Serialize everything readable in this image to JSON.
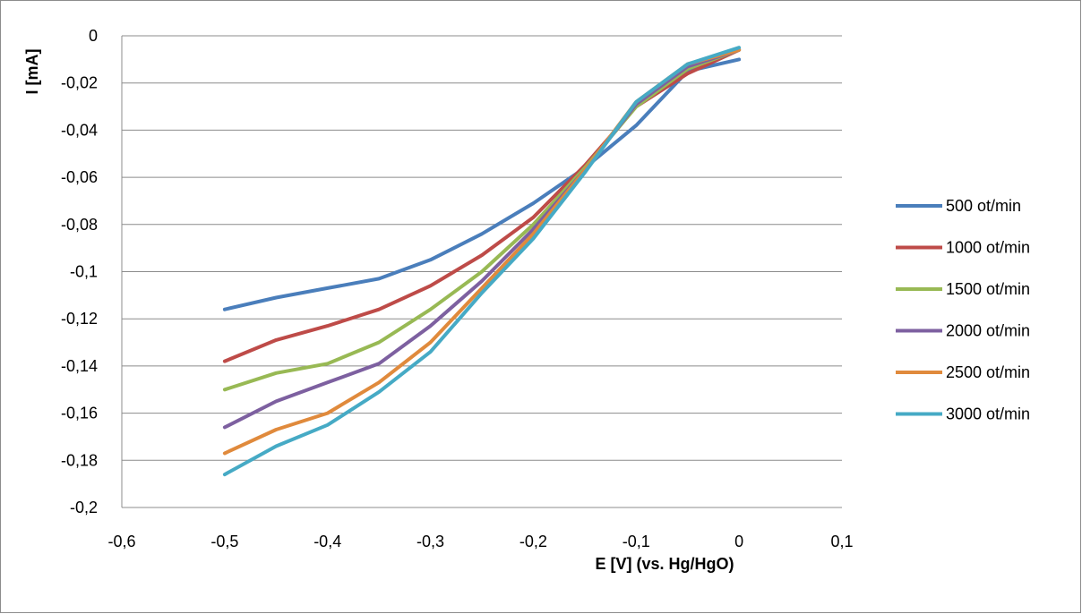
{
  "chart_data": {
    "type": "line",
    "title": "",
    "xlabel": "E [V] (vs. Hg/HgO)",
    "ylabel": "I [mA]",
    "xlim": [
      -0.6,
      0.1
    ],
    "ylim": [
      -0.2,
      0
    ],
    "xticks": [
      "-0,6",
      "-0,5",
      "-0,4",
      "-0,3",
      "-0,2",
      "-0,1",
      "0",
      "0,1"
    ],
    "yticks": [
      "0",
      "-0,02",
      "-0,04",
      "-0,06",
      "-0,08",
      "-0,1",
      "-0,12",
      "-0,14",
      "-0,16",
      "-0,18",
      "-0,2"
    ],
    "grid": "horizontal",
    "legend_position": "right",
    "series": [
      {
        "name": "500 ot/min",
        "color": "#4a7ebb",
        "x": [
          -0.5,
          -0.45,
          -0.4,
          -0.35,
          -0.3,
          -0.25,
          -0.2,
          -0.15,
          -0.1,
          -0.05,
          0
        ],
        "y": [
          -0.116,
          -0.111,
          -0.107,
          -0.103,
          -0.095,
          -0.084,
          -0.071,
          -0.056,
          -0.038,
          -0.015,
          -0.01
        ]
      },
      {
        "name": "1000 ot/min",
        "color": "#be4b48",
        "x": [
          -0.5,
          -0.45,
          -0.4,
          -0.35,
          -0.3,
          -0.25,
          -0.2,
          -0.15,
          -0.1,
          -0.05,
          0
        ],
        "y": [
          -0.138,
          -0.129,
          -0.123,
          -0.116,
          -0.106,
          -0.093,
          -0.077,
          -0.055,
          -0.03,
          -0.016,
          -0.006
        ]
      },
      {
        "name": "1500 ot/min",
        "color": "#98b954",
        "x": [
          -0.5,
          -0.45,
          -0.4,
          -0.35,
          -0.3,
          -0.25,
          -0.2,
          -0.15,
          -0.1,
          -0.05,
          0
        ],
        "y": [
          -0.15,
          -0.143,
          -0.139,
          -0.13,
          -0.116,
          -0.1,
          -0.08,
          -0.056,
          -0.03,
          -0.014,
          -0.006
        ]
      },
      {
        "name": "2000 ot/min",
        "color": "#7d60a0",
        "x": [
          -0.5,
          -0.45,
          -0.4,
          -0.35,
          -0.3,
          -0.25,
          -0.2,
          -0.15,
          -0.1,
          -0.05,
          0
        ],
        "y": [
          -0.166,
          -0.155,
          -0.147,
          -0.139,
          -0.123,
          -0.104,
          -0.082,
          -0.057,
          -0.029,
          -0.013,
          -0.006
        ]
      },
      {
        "name": "2500 ot/min",
        "color": "#e08a3c",
        "x": [
          -0.5,
          -0.45,
          -0.4,
          -0.35,
          -0.3,
          -0.25,
          -0.2,
          -0.15,
          -0.1,
          -0.05,
          0
        ],
        "y": [
          -0.177,
          -0.167,
          -0.16,
          -0.147,
          -0.13,
          -0.107,
          -0.084,
          -0.057,
          -0.028,
          -0.012,
          -0.006
        ]
      },
      {
        "name": "3000 ot/min",
        "color": "#46aac5",
        "x": [
          -0.5,
          -0.45,
          -0.4,
          -0.35,
          -0.3,
          -0.25,
          -0.2,
          -0.15,
          -0.1,
          -0.05,
          0
        ],
        "y": [
          -0.186,
          -0.174,
          -0.165,
          -0.151,
          -0.134,
          -0.109,
          -0.086,
          -0.058,
          -0.028,
          -0.012,
          -0.005
        ]
      }
    ]
  }
}
